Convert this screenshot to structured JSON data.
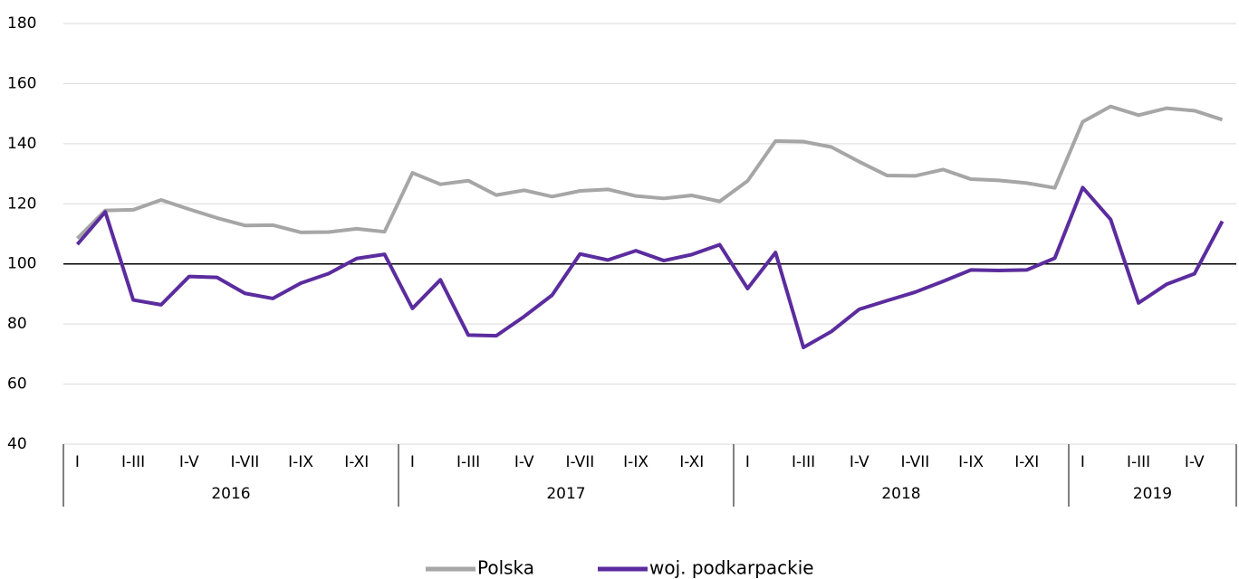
{
  "chart_data": {
    "type": "line",
    "categories": [
      "I",
      null,
      "I-III",
      null,
      "I-V",
      null,
      "I-VII",
      null,
      "I-IX",
      null,
      "I-XI",
      null,
      "I",
      null,
      "I-III",
      null,
      "I-V",
      null,
      "I-VII",
      null,
      "I-IX",
      null,
      "I-XI",
      null,
      "I",
      null,
      "I-III",
      null,
      "I-V",
      null,
      "I-VII",
      null,
      "I-IX",
      null,
      "I-XI",
      null,
      "I",
      null,
      "I-III",
      null,
      "I-V",
      null
    ],
    "groups": [
      "2016",
      "2017",
      "2018",
      "2019"
    ],
    "series": [
      {
        "name": "Polska",
        "color": "#a6a6a6",
        "values": [
          108.5,
          117.8,
          118,
          121.3,
          118.2,
          115.3,
          112.8,
          112.9,
          110.5,
          110.6,
          111.7,
          110.7,
          130.3,
          126.5,
          127.7,
          122.9,
          124.5,
          122.4,
          124.3,
          124.8,
          122.6,
          121.8,
          122.8,
          120.8,
          127.6,
          140.9,
          140.7,
          138.9,
          134.0,
          129.4,
          129.3,
          131.4,
          128.2,
          127.8,
          126.9,
          125.3,
          147.3,
          152.4,
          149.5,
          151.8,
          151.0,
          148.0
        ]
      },
      {
        "name": "woj. podkarpackie",
        "color": "#5b2c9e",
        "values": [
          106.5,
          117.3,
          88.0,
          86.4,
          95.8,
          95.5,
          90.2,
          88.5,
          93.6,
          96.8,
          101.8,
          103.2,
          85.2,
          94.7,
          76.3,
          76.1,
          82.5,
          89.6,
          103.3,
          101.3,
          104.4,
          101.1,
          103.1,
          106.4,
          91.8,
          103.8,
          72.2,
          77.5,
          84.9,
          87.8,
          90.6,
          94.2,
          98.0,
          97.8,
          98.0,
          101.9,
          125.4,
          114.8,
          87.0,
          93.2,
          96.7,
          114.2
        ]
      }
    ],
    "reference_line": 100,
    "ylim": [
      40,
      180
    ],
    "yticks": [
      40,
      60,
      80,
      100,
      120,
      140,
      160,
      180
    ],
    "grid": true
  }
}
